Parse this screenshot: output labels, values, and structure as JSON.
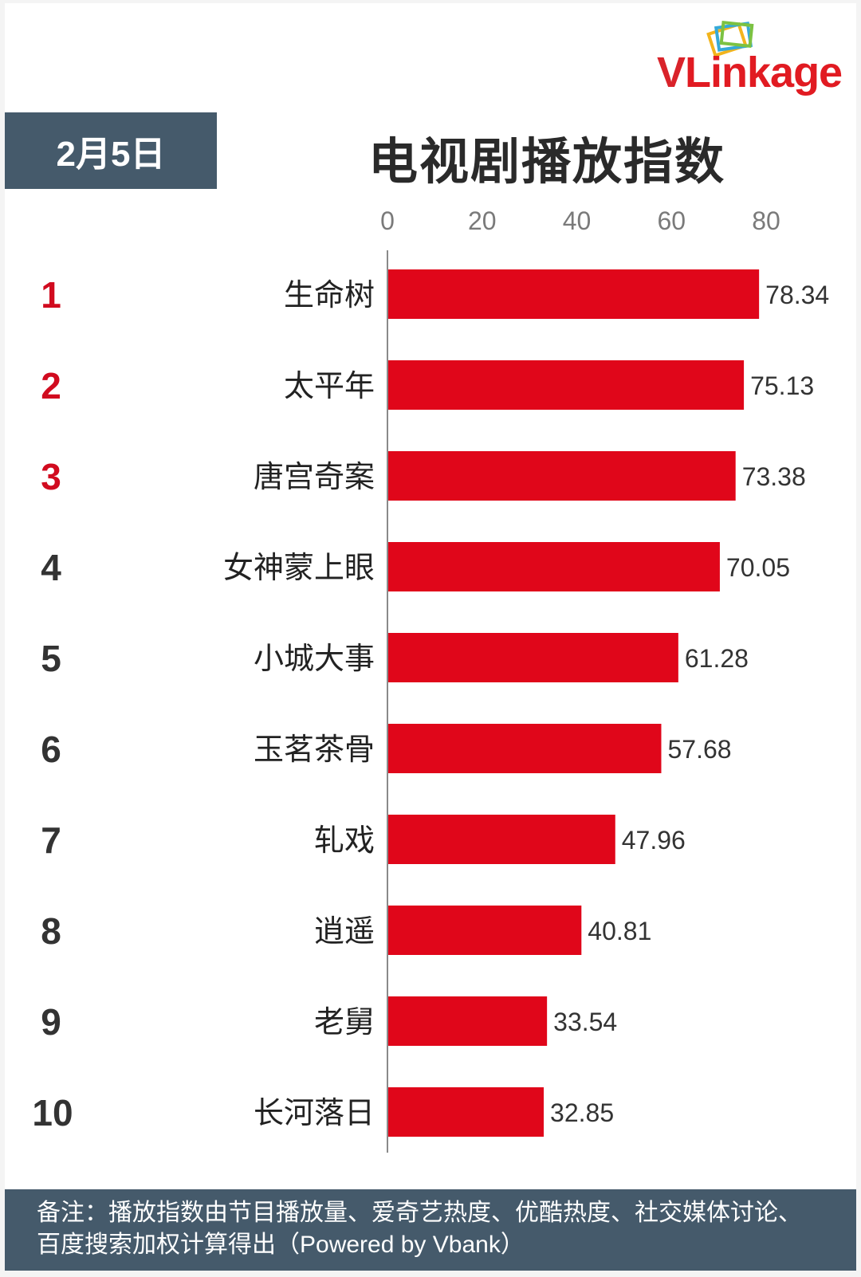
{
  "date_label": "2月5日",
  "logo": {
    "text_v": "V",
    "text_rest": "Linkage"
  },
  "colors": {
    "bar": "#e0061a",
    "rank_top": "#d10b1f",
    "rank_other": "#333333",
    "header_box": "#455a6b"
  },
  "chart_data": {
    "type": "bar",
    "orientation": "horizontal",
    "title": "电视剧播放指数",
    "xlim": [
      0,
      80
    ],
    "xticks": [
      "0",
      "20",
      "40",
      "60",
      "80"
    ],
    "ranks": [
      "1",
      "2",
      "3",
      "4",
      "5",
      "6",
      "7",
      "8",
      "9",
      "10"
    ],
    "categories": [
      "生命树",
      "太平年",
      "唐宫奇案",
      "女神蒙上眼",
      "小城大事",
      "玉茗茶骨",
      "轧戏",
      "逍遥",
      "老舅",
      "长河落日"
    ],
    "values": [
      78.34,
      75.13,
      73.38,
      70.05,
      61.28,
      57.68,
      47.96,
      40.81,
      33.54,
      32.85
    ],
    "value_labels": [
      "78.34",
      "75.13",
      "73.38",
      "70.05",
      "61.28",
      "57.68",
      "47.96",
      "40.81",
      "33.54",
      "32.85"
    ],
    "grid": false,
    "legend": "none"
  },
  "footer_note": "备注：播放指数由节目播放量、爱奇艺热度、优酷热度、社交媒体讨论、百度搜索加权计算得出（Powered by Vbank）"
}
